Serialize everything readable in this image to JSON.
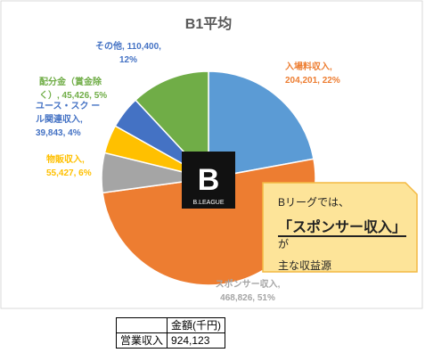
{
  "chart_data": {
    "type": "pie",
    "title": "B1平均",
    "slices": [
      {
        "name": "入場料収入",
        "value": 204201,
        "percent": "22%",
        "color": "#5b9bd5",
        "label_lines": [
          "入場料収入,",
          "204,201, 22%"
        ],
        "label_color": "#ed7d31"
      },
      {
        "name": "スポンサー収入",
        "value": 468826,
        "percent": "51%",
        "color": "#ed7d31",
        "label_lines": [
          "スポンサー収入,",
          "468,826, 51%"
        ],
        "label_color": "#a5a5a5"
      },
      {
        "name": "物販収入",
        "value": 55427,
        "percent": "6%",
        "color": "#a5a5a5",
        "label_lines": [
          "物販収入,",
          "55,427, 6%"
        ],
        "label_color": "#ffc000"
      },
      {
        "name": "ユース・スクール関連収入",
        "value": 39843,
        "percent": "4%",
        "color": "#ffc000",
        "label_lines": [
          "ユース・スク ー",
          "ル関連収入,",
          "39,843, 4%"
        ],
        "label_color": "#4472c4"
      },
      {
        "name": "配分金（賞金除く）",
        "value": 45426,
        "percent": "5%",
        "color": "#4472c4",
        "label_lines": [
          "配分金（賞金除",
          "く）, 45,426, 5%"
        ],
        "label_color": "#70ad47"
      },
      {
        "name": "その他",
        "value": 110400,
        "percent": "12%",
        "color": "#70ad47",
        "label_lines": [
          "その他, 110,400,",
          "12%"
        ],
        "label_color": "#4472c4"
      }
    ]
  },
  "logo": {
    "text": "B.LEAGUE"
  },
  "callout": {
    "line1": "Bリーグでは、",
    "line2_main": "「スポンサー収入」",
    "line2_tail": "が",
    "line3": "主な収益源",
    "fill": "#fde499",
    "border": "#f4b942"
  },
  "table": {
    "header": "金額(千円)",
    "row_label": "営業収入",
    "row_value": "924,123"
  }
}
